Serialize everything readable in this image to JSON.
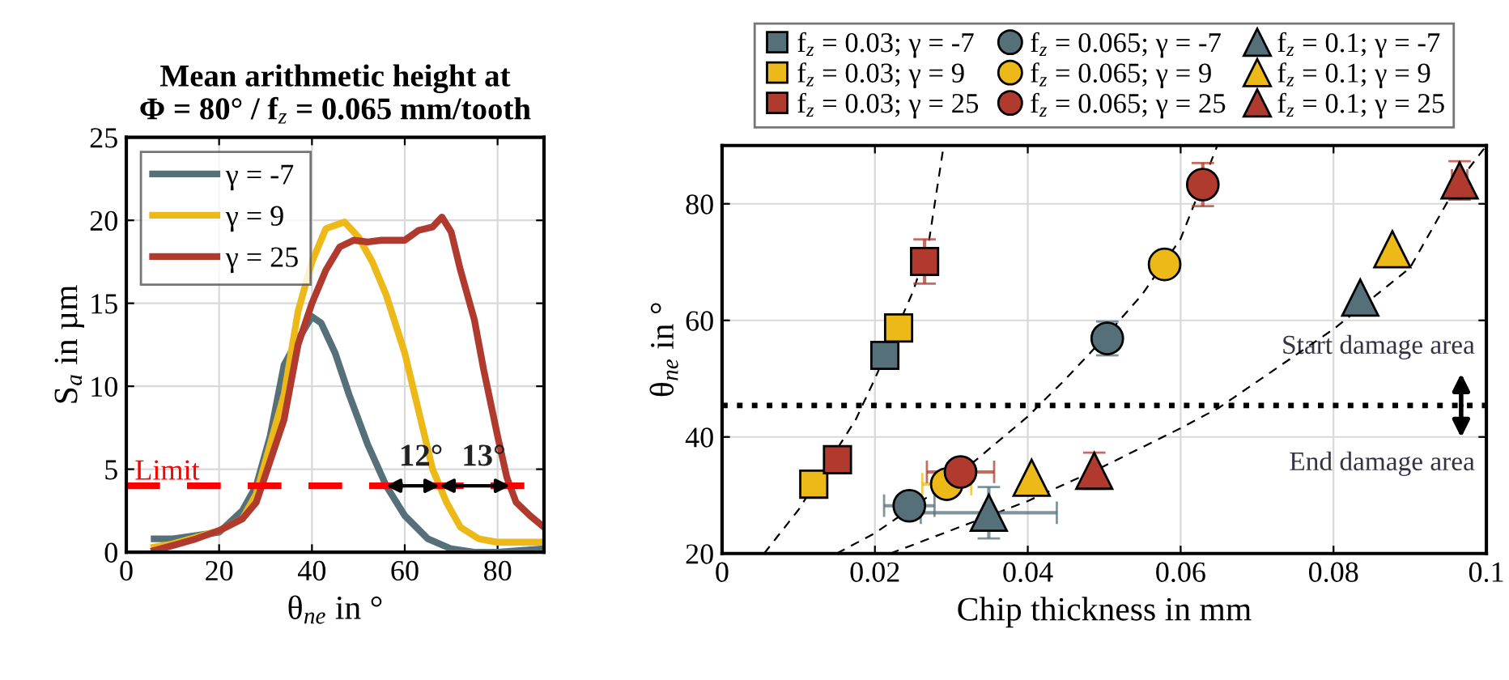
{
  "chart_data": [
    {
      "type": "line",
      "title": "Mean arithmetic height at\nΦ = 80° / f$_{z}$ = 0.065 mm/tooth",
      "xlabel": "θ$_{ne}$ in °",
      "ylabel": "S$_{a}$ in µm",
      "xlim": [
        0,
        90
      ],
      "xticks": [
        0,
        20,
        40,
        60,
        80
      ],
      "ylim": [
        0,
        25
      ],
      "yticks": [
        0,
        5,
        10,
        15,
        20,
        25
      ],
      "grid": true,
      "legend": "top left",
      "line_style": "solid",
      "series": [
        {
          "name": "γ = -7",
          "color": "#56707a",
          "x": [
            6,
            10,
            15,
            20,
            25,
            28,
            31,
            34,
            37,
            40,
            42,
            45,
            48,
            52,
            56,
            60,
            65,
            70,
            75,
            80,
            90
          ],
          "values": [
            0.8,
            0.8,
            1.0,
            1.2,
            2.5,
            4,
            7,
            11.3,
            12.8,
            14.2,
            13.8,
            12,
            9.5,
            6.5,
            4,
            2.2,
            0.8,
            0.2,
            0,
            0,
            0.2
          ]
        },
        {
          "name": "γ = 9",
          "color": "#ecb918",
          "x": [
            6,
            10,
            15,
            20,
            25,
            28,
            31,
            34,
            37,
            40,
            43,
            47,
            50,
            53,
            56,
            60,
            63,
            66,
            69,
            72,
            76,
            80,
            90
          ],
          "values": [
            0.3,
            0.5,
            0.9,
            1.3,
            2.0,
            3.5,
            6.5,
            9.5,
            14.5,
            17.5,
            19.5,
            19.9,
            19,
            17.5,
            15.5,
            12,
            8.5,
            5,
            3,
            1.5,
            0.8,
            0.6,
            0.6
          ]
        },
        {
          "name": "γ = 25",
          "color": "#b03a2e",
          "x": [
            6,
            10,
            15,
            20,
            25,
            28,
            31,
            34,
            37,
            40,
            43,
            46,
            49,
            52,
            55,
            58,
            60,
            63,
            66,
            68,
            70,
            72,
            75,
            77,
            80,
            82,
            84,
            87,
            90
          ],
          "values": [
            0.1,
            0.4,
            0.8,
            1.3,
            2.0,
            3,
            5.5,
            8,
            12.5,
            15,
            17,
            18.4,
            18.8,
            18.7,
            18.8,
            18.8,
            18.8,
            19.4,
            19.6,
            20.2,
            19.3,
            17,
            14,
            11,
            7,
            4.5,
            3,
            2.2,
            1.5
          ]
        }
      ],
      "ref_lines": [
        {
          "axis": "y",
          "value": 4,
          "label": "Limit",
          "color": "#ff0000",
          "line_style": "dashed"
        }
      ],
      "annotations": [
        {
          "text": "12°",
          "x": 63.5,
          "y": 4
        },
        {
          "text": "13°",
          "x": 77,
          "y": 4
        }
      ]
    },
    {
      "type": "scatter",
      "xlabel": "Chip thickness in mm",
      "ylabel": "θ$_{ne}$ in °",
      "xlim": [
        0,
        0.1
      ],
      "xticks": [
        0,
        0.02,
        0.04,
        0.06,
        0.08,
        0.1
      ],
      "ylim": [
        20,
        90
      ],
      "yticks": [
        20,
        40,
        60,
        80
      ],
      "grid": true,
      "legend": "top",
      "series": [
        {
          "name": "f$_{z}$ = 0.03; γ = -7",
          "color": "#56707a",
          "marker": "square",
          "x": [
            0.0213
          ],
          "values": [
            54
          ],
          "errors": [
            null
          ],
          "xerrors": [
            null
          ]
        },
        {
          "name": "f$_{z}$ = 0.03; γ = 9",
          "color": "#ecb918",
          "marker": "square",
          "x": [
            0.0231,
            0.012
          ],
          "values": [
            58.7,
            31.9
          ],
          "errors": [
            null,
            null
          ],
          "xerrors": [
            null,
            null
          ]
        },
        {
          "name": "f$_{z}$ = 0.03; γ = 25",
          "color": "#b03a2e",
          "marker": "square",
          "x": [
            0.0265,
            0.0151
          ],
          "values": [
            70.1,
            36.1
          ],
          "errors": [
            3.8,
            1.2
          ],
          "xerrors": [
            null,
            0.001
          ]
        },
        {
          "name": "f$_{z}$ = 0.065; γ = -7",
          "color": "#56707a",
          "marker": "circle",
          "x": [
            0.0504,
            0.0245
          ],
          "values": [
            56.9,
            28.2
          ],
          "errors": [
            2.9,
            null
          ],
          "xerrors": [
            null,
            0.0033
          ]
        },
        {
          "name": "f$_{z}$ = 0.065; γ = 9",
          "color": "#ecb918",
          "marker": "circle",
          "x": [
            0.0579,
            0.0294
          ],
          "values": [
            69.6,
            31.9
          ],
          "errors": [
            null,
            1.2
          ],
          "xerrors": [
            null,
            0.0032
          ]
        },
        {
          "name": "f$_{z}$ = 0.065; γ = 25",
          "color": "#b03a2e",
          "marker": "circle",
          "x": [
            0.0629,
            0.0312
          ],
          "values": [
            83.3,
            34
          ],
          "errors": [
            3.7,
            1
          ],
          "xerrors": [
            null,
            0.0044
          ]
        },
        {
          "name": "f$_{z}$ = 0.1; γ = -7",
          "color": "#56707a",
          "marker": "triangle",
          "x": [
            0.0835,
            0.0349
          ],
          "values": [
            63.9,
            27
          ],
          "errors": [
            null,
            4.4
          ],
          "xerrors": [
            null,
            0.0089
          ]
        },
        {
          "name": "f$_{z}$ = 0.1; γ = 9",
          "color": "#ecb918",
          "marker": "triangle",
          "x": [
            0.0877,
            0.0405
          ],
          "values": [
            72.2,
            33
          ],
          "errors": [
            null,
            null
          ],
          "xerrors": [
            null,
            null
          ]
        },
        {
          "name": "f$_{z}$ = 0.1; γ = 25",
          "color": "#b03a2e",
          "marker": "triangle",
          "x": [
            0.0965,
            0.0487
          ],
          "values": [
            84,
            34.2
          ],
          "errors": [
            3.3,
            3.1
          ],
          "xerrors": [
            0.001,
            null
          ]
        },
        {
          "type": "line",
          "color": "#000000",
          "line_style": "dashed",
          "marker": "none",
          "x": [
            0.0055,
            0.01,
            0.0175,
            0.02,
            0.025,
            0.027,
            0.029
          ],
          "values": [
            20,
            27.5,
            43,
            50,
            65,
            73,
            90
          ]
        },
        {
          "type": "line",
          "color": "#000000",
          "line_style": "dashed",
          "marker": "none",
          "x": [
            0.015,
            0.02,
            0.025,
            0.03,
            0.035,
            0.04,
            0.045,
            0.05,
            0.055,
            0.06,
            0.0648
          ],
          "values": [
            20,
            23.5,
            28,
            32.5,
            38,
            43.5,
            50,
            57,
            64.5,
            74,
            90
          ]
        },
        {
          "type": "line",
          "color": "#000000",
          "line_style": "dashed",
          "marker": "none",
          "x": [
            0.022,
            0.03,
            0.04,
            0.05,
            0.06,
            0.065,
            0.07,
            0.08,
            0.09,
            0.0965,
            0.1
          ],
          "values": [
            20,
            24,
            29,
            35,
            41.5,
            45,
            49.5,
            58.5,
            69,
            84,
            90
          ]
        }
      ],
      "ref_lines": [
        {
          "axis": "y",
          "value": 45.4,
          "color": "#000000",
          "line_style": "dotted"
        }
      ],
      "annotations": [
        "Start damage area",
        "End damage area"
      ]
    }
  ]
}
